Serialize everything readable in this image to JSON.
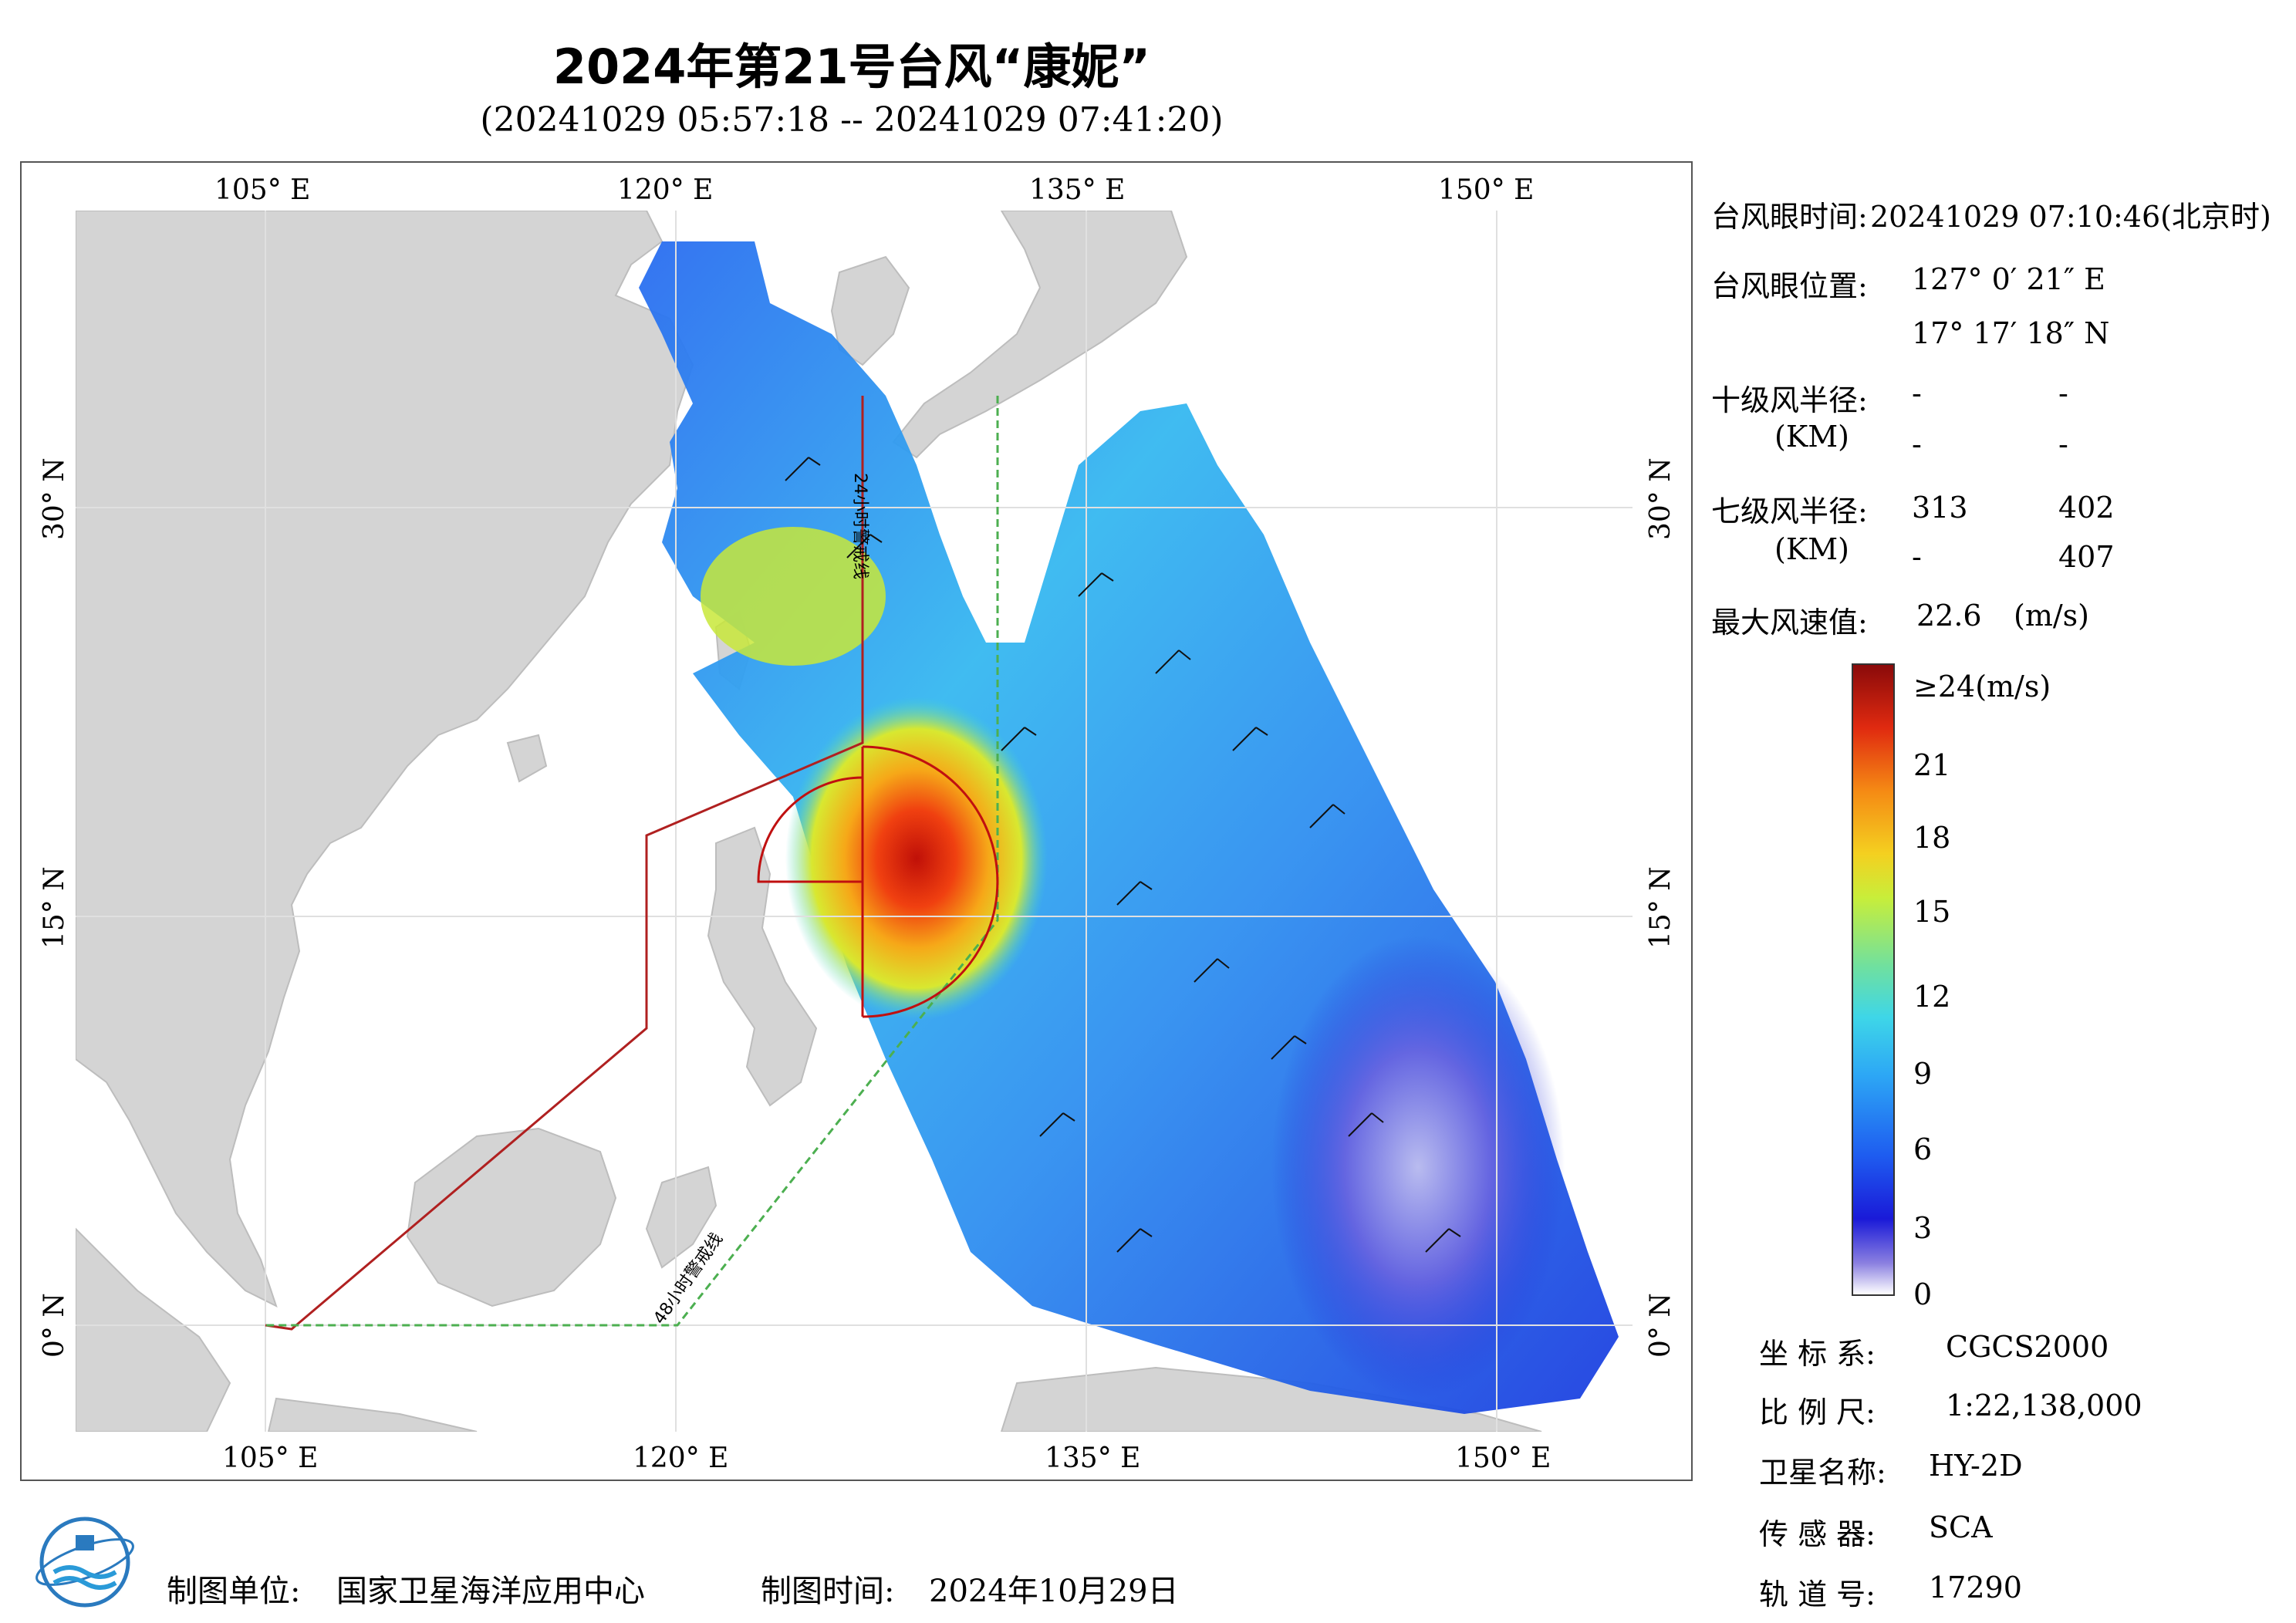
{
  "title": "2024年第21号台风“康妮”",
  "subtitle": "(20241029 05:57:18 -- 20241029 07:41:20)",
  "map": {
    "lon_labels": [
      "105° E",
      "120° E",
      "135° E",
      "150° E"
    ],
    "lat_labels": [
      "30° N",
      "15° N",
      "0° N"
    ],
    "line_24h": "24小时警戒线",
    "line_48h": "48小时警戒线",
    "colors": {
      "land": "#d4d4d4",
      "ocean": "#ffffff",
      "warning_24h": "#b02020",
      "warning_48h": "#4caf50",
      "wind_circle": "#c01010"
    }
  },
  "info": {
    "eye_time_label": "台风眼时间:",
    "eye_time_value": "20241029 07:10:46(北京时)",
    "eye_pos_label": "台风眼位置:",
    "eye_lon": "127° 0′ 21″ E",
    "eye_lat": "17° 17′ 18″ N",
    "r10_label": "十级风半径:",
    "km_label": "(KM)",
    "r10_values": [
      "-",
      "-",
      "-",
      "-"
    ],
    "r7_label": "七级风半径:",
    "r7_values": [
      "313",
      "402",
      "-",
      "407"
    ],
    "max_wind_label": "最大风速值:",
    "max_wind_value": "22.6",
    "max_wind_unit": "(m/s)"
  },
  "colorbar": {
    "ticks": [
      "≥24(m/s)",
      "21",
      "18",
      "15",
      "12",
      "9",
      "6",
      "3",
      "0"
    ]
  },
  "meta": {
    "coord_label": "坐 标 系:",
    "coord_value": "CGCS2000",
    "scale_label": "比 例 尺:",
    "scale_value": "1:22,138,000",
    "sat_label": "卫星名称:",
    "sat_value": "HY-2D",
    "sensor_label": "传 感 器:",
    "sensor_value": "SCA",
    "orbit_label": "轨 道 号:",
    "orbit_value": "17290"
  },
  "footer": {
    "unit_label": "制图单位:",
    "unit_value": "国家卫星海洋应用中心",
    "date_label": "制图时间:",
    "date_value": "2024年10月29日"
  }
}
